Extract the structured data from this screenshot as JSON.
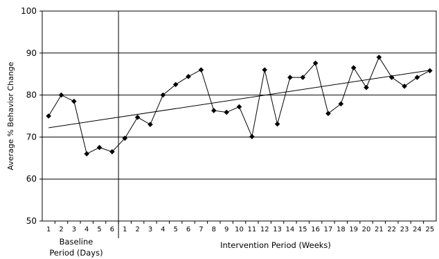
{
  "chart_data": {
    "type": "line",
    "title": "",
    "ylabel": "Average % Behavior Change",
    "ylim": [
      50,
      100
    ],
    "yticks": [
      50,
      60,
      70,
      80,
      90,
      100
    ],
    "grid": "horizontal",
    "x_tick_labels": [
      "1",
      "2",
      "3",
      "4",
      "5",
      "6",
      "1",
      "2",
      "3",
      "4",
      "5",
      "6",
      "7",
      "8",
      "9",
      "10",
      "11",
      "12",
      "13",
      "14",
      "15",
      "16",
      "17",
      "18",
      "19",
      "20",
      "21",
      "22",
      "23",
      "24",
      "25"
    ],
    "phases": [
      {
        "label_line1": "Baseline",
        "label_line2": "Period (Days)",
        "count": 6
      },
      {
        "label_line1": "Intervention Period (Weeks)",
        "label_line2": "",
        "count": 25
      }
    ],
    "series": [
      {
        "marker": "diamond",
        "color": "#000000",
        "values": [
          75,
          80,
          78.5,
          66,
          67.5,
          66.5,
          69.7,
          74.7,
          73,
          80,
          82.5,
          84.4,
          86,
          76.3,
          75.9,
          77.2,
          70.1,
          86,
          73.1,
          84.2,
          84.2,
          87.6,
          75.6,
          77.9,
          86.5,
          81.8,
          89,
          84.2,
          82.1,
          84.2,
          85.8
        ]
      }
    ],
    "trendline": {
      "start": 72.2,
      "end": 85.9,
      "start_index": 0,
      "end_index": 30
    }
  }
}
